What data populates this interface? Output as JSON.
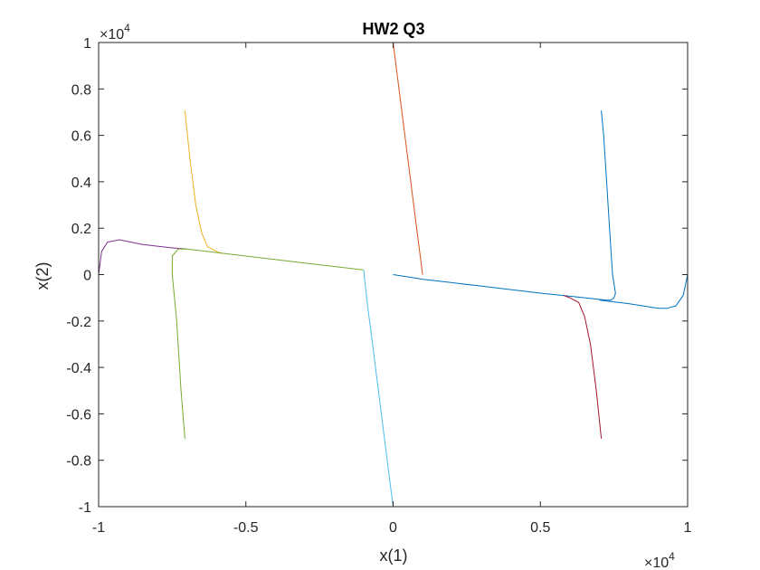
{
  "chart_data": {
    "type": "line",
    "title": "HW2 Q3",
    "xlabel": "x(1)",
    "ylabel": "x(2)",
    "xlim": [
      -10000,
      10000
    ],
    "ylim": [
      -10000,
      10000
    ],
    "x_ticks": [
      -10000,
      -5000,
      0,
      5000,
      10000
    ],
    "x_tick_labels": [
      "-1",
      "-0.5",
      "0",
      "0.5",
      "1"
    ],
    "y_ticks": [
      -10000,
      -8000,
      -6000,
      -4000,
      -2000,
      0,
      2000,
      4000,
      6000,
      8000,
      10000
    ],
    "y_tick_labels": [
      "-1",
      "-0.8",
      "-0.6",
      "-0.4",
      "-0.2",
      "0",
      "0.2",
      "0.4",
      "0.6",
      "0.8",
      "1"
    ],
    "x_exponent_label": "×10",
    "x_exponent_power": "4",
    "y_exponent_label": "×10",
    "y_exponent_power": "4",
    "grid": false,
    "box": true,
    "series": [
      {
        "color": "#0072BD",
        "x": [
          7070,
          7150,
          7250,
          7350,
          7450,
          7550,
          7500,
          7400,
          7250,
          6500,
          5000,
          3000,
          1000,
          0
        ],
        "y": [
          7070,
          6000,
          4000,
          2000,
          0,
          -800,
          -1000,
          -1100,
          -1100,
          -1000,
          -800,
          -500,
          -200,
          0
        ]
      },
      {
        "color": "#D95319",
        "x": [
          0,
          200,
          400,
          600,
          800,
          1000
        ],
        "y": [
          10000,
          8000,
          6000,
          4000,
          2000,
          0
        ]
      },
      {
        "color": "#EDB120",
        "x": [
          -7070,
          -6900,
          -6700,
          -6500,
          -6300,
          -6000,
          -5800
        ],
        "y": [
          7070,
          5000,
          3000,
          1800,
          1200,
          1000,
          900
        ]
      },
      {
        "color": "#7E2F8E",
        "x": [
          -10000,
          -9900,
          -9700,
          -9300,
          -8500,
          -7500,
          -7000
        ],
        "y": [
          0,
          1000,
          1400,
          1500,
          1300,
          1150,
          1100
        ]
      },
      {
        "color": "#77AC30",
        "x": [
          -7070,
          -7200,
          -7350,
          -7500,
          -7500,
          -7300,
          -7000,
          -5000,
          -3000,
          -1000
        ],
        "y": [
          -7070,
          -5000,
          -2000,
          0,
          800,
          1100,
          1100,
          800,
          500,
          200
        ]
      },
      {
        "color": "#4DBEEE",
        "x": [
          0,
          -300,
          -600,
          -900,
          -1000
        ],
        "y": [
          -10000,
          -7000,
          -4000,
          -1000,
          200
        ]
      },
      {
        "color": "#A2142F",
        "x": [
          7070,
          6900,
          6700,
          6500,
          6300,
          6000,
          5800
        ],
        "y": [
          -7070,
          -5000,
          -3000,
          -1800,
          -1200,
          -1000,
          -900
        ]
      },
      {
        "color": "#0072BD",
        "x": [
          7000,
          8000,
          9000,
          9300,
          9600,
          9850,
          10000
        ],
        "y": [
          -1100,
          -1250,
          -1450,
          -1450,
          -1350,
          -900,
          0
        ]
      }
    ]
  }
}
